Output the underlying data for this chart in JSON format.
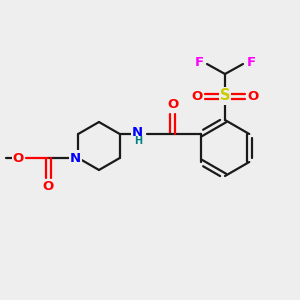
{
  "background_color": "#eeeeee",
  "bond_color": "#1a1a1a",
  "atom_colors": {
    "N": "#0000FF",
    "O": "#FF0000",
    "S": "#CCCC00",
    "F": "#FF00FF",
    "H": "#008080",
    "C": "#1a1a1a"
  },
  "figsize": [
    3.0,
    3.0
  ],
  "dpi": 100,
  "lw": 1.6,
  "fs": 9.5
}
